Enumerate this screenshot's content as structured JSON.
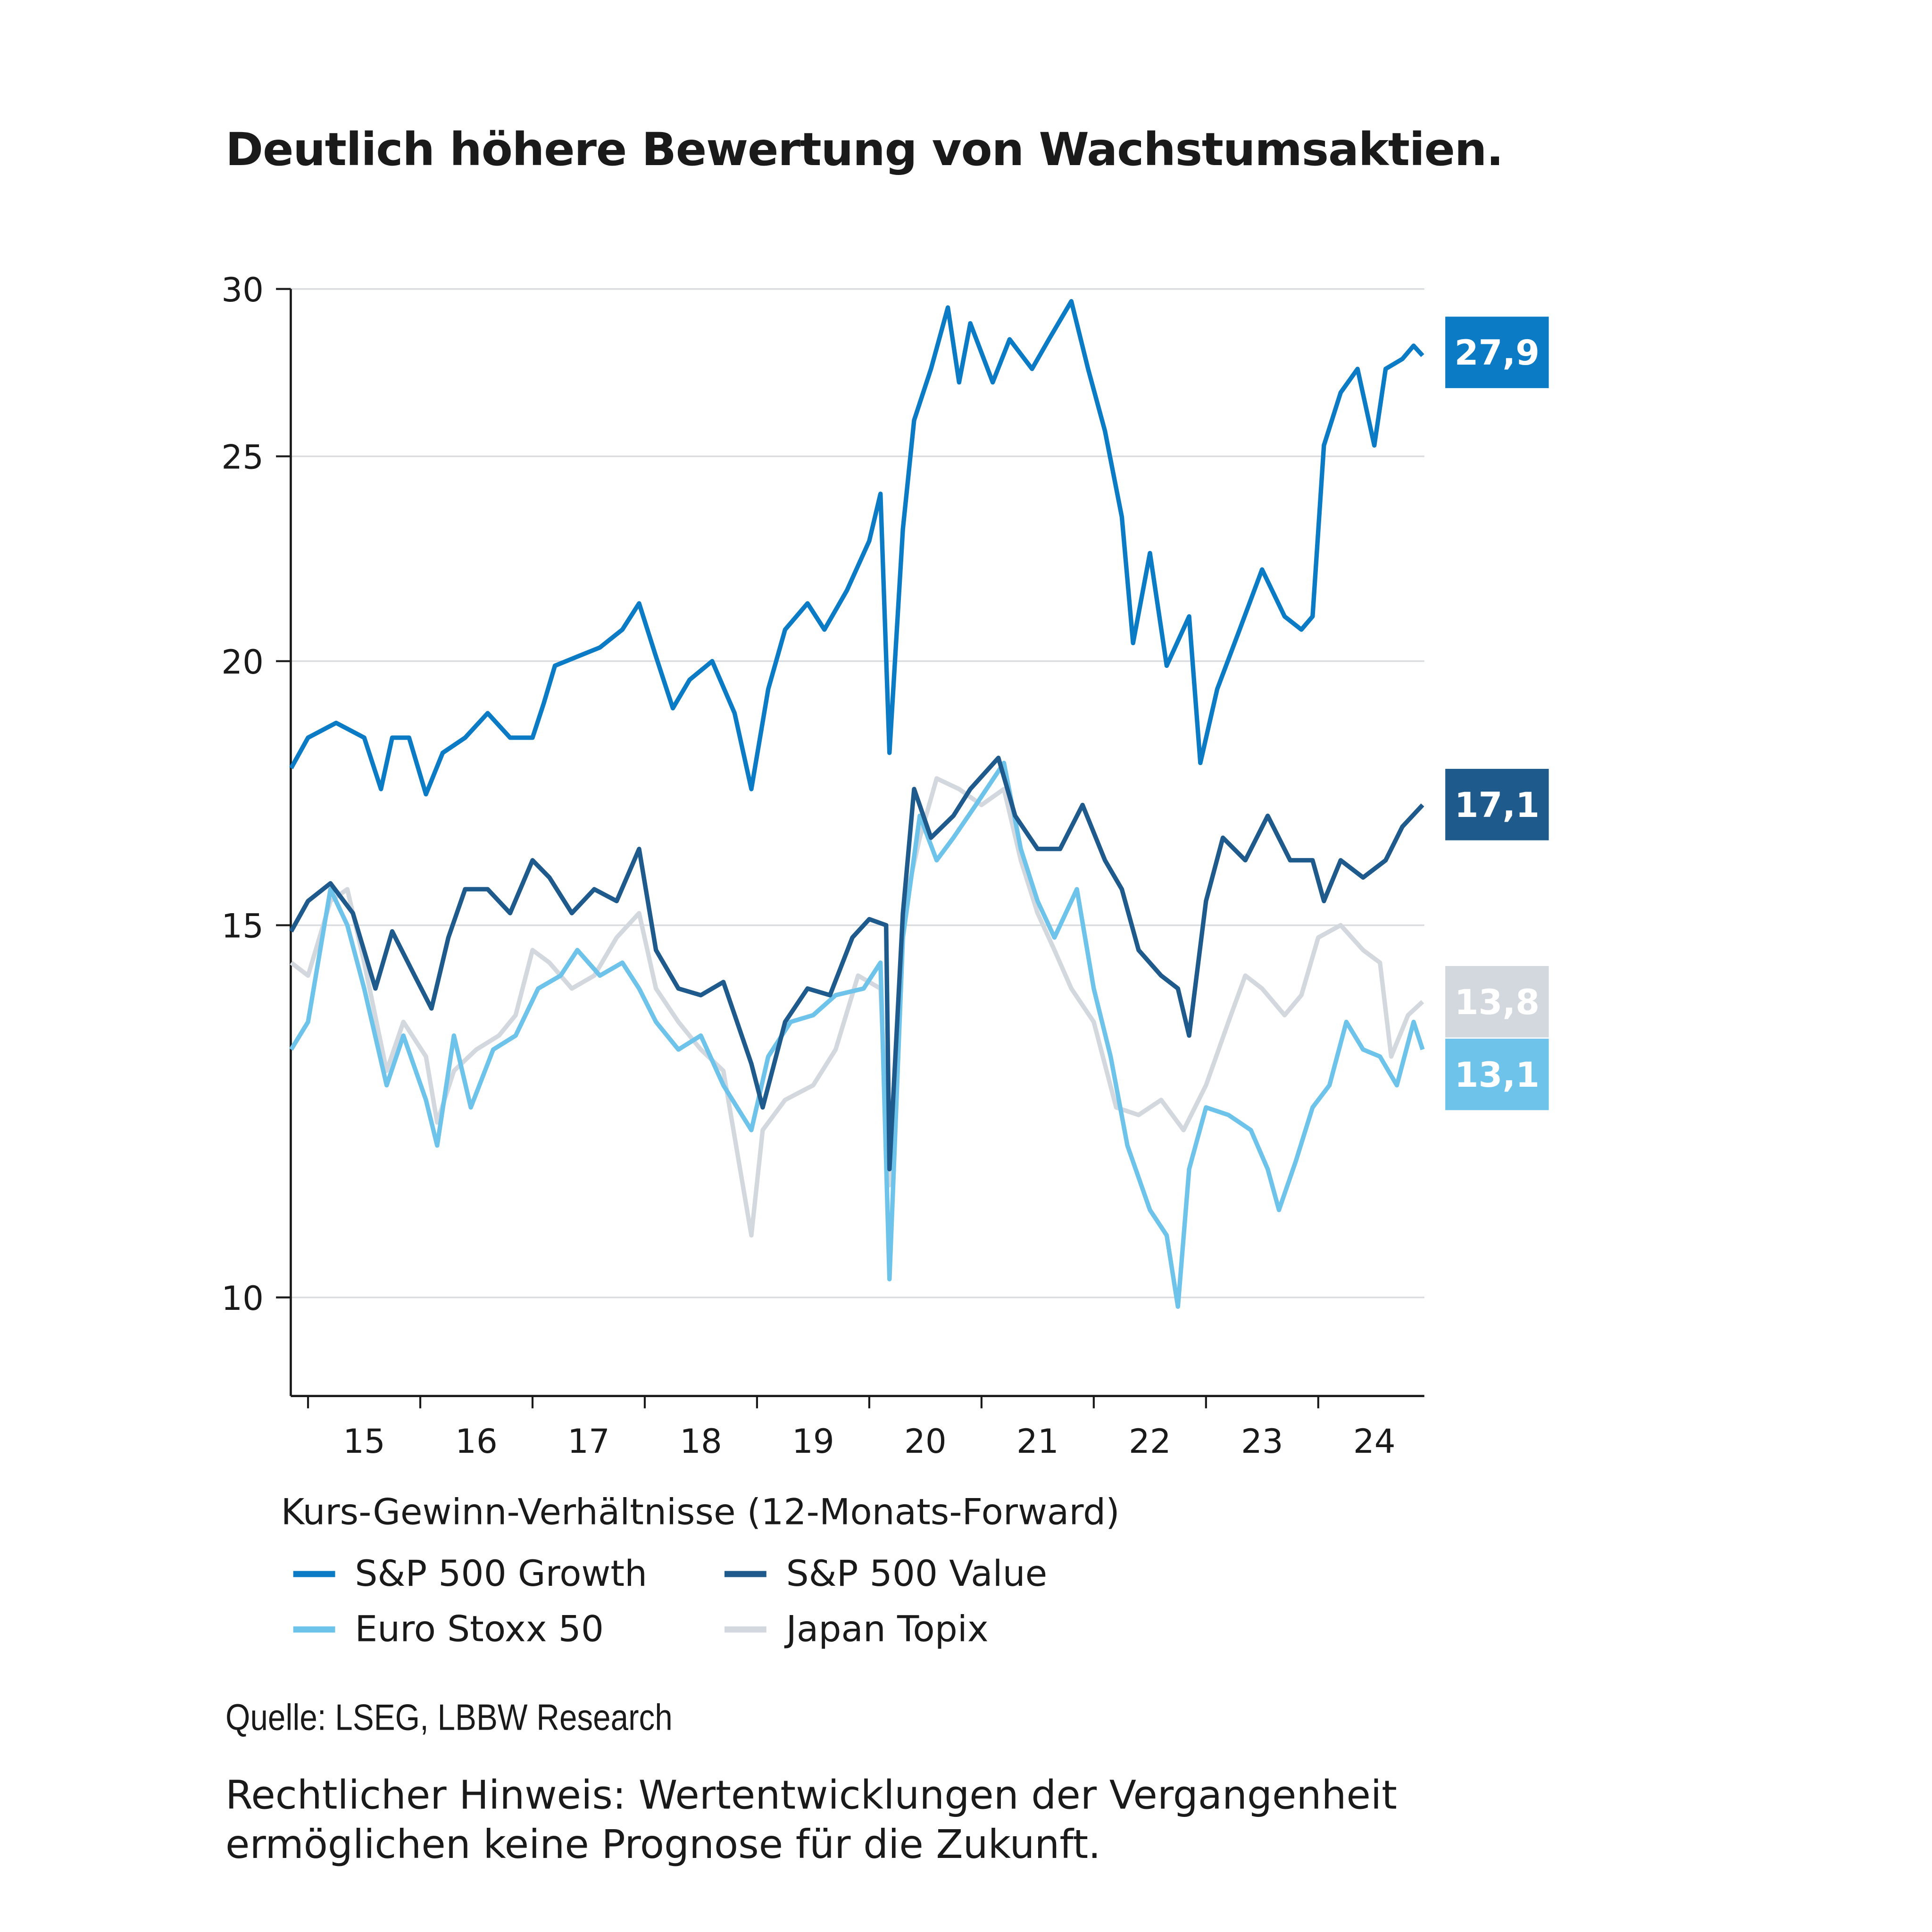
{
  "title": "Deutlich höhere Bewertung von Wachstumsaktien.",
  "chart_data": {
    "type": "line",
    "title": "Deutlich höhere Bewertung von Wachstumsaktien.",
    "ylabel": "Kurs-Gewinn-Verhältnisse (12-Monats-Forward)",
    "xlabel": "",
    "y_scale": "log",
    "ylim": [
      9,
      30
    ],
    "yticks": [
      10,
      15,
      20,
      25,
      30
    ],
    "ytick_labels": [
      "10",
      "15",
      "20",
      "25",
      "30"
    ],
    "xlim": [
      2014.85,
      2024.93
    ],
    "xtick_labels": [
      "15",
      "16",
      "17",
      "18",
      "19",
      "20",
      "21",
      "22",
      "23",
      "24"
    ],
    "grid": true,
    "legend_placement": "bottom",
    "series": [
      {
        "name": "S&P 500 Growth",
        "color": "#0a7bc4",
        "end_label": "27,9",
        "end_label_text_color": "#ffffff",
        "x": [
          2014.85,
          2015.0,
          2015.25,
          2015.5,
          2015.65,
          2015.75,
          2015.9,
          2016.05,
          2016.2,
          2016.4,
          2016.6,
          2016.8,
          2017.0,
          2017.1,
          2017.2,
          2017.4,
          2017.6,
          2017.8,
          2017.95,
          2018.1,
          2018.25,
          2018.4,
          2018.6,
          2018.8,
          2018.95,
          2019.1,
          2019.25,
          2019.45,
          2019.6,
          2019.8,
          2020.0,
          2020.1,
          2020.18,
          2020.3,
          2020.4,
          2020.55,
          2020.7,
          2020.8,
          2020.9,
          2021.1,
          2021.25,
          2021.45,
          2021.6,
          2021.8,
          2021.95,
          2022.1,
          2022.25,
          2022.35,
          2022.5,
          2022.65,
          2022.85,
          2022.95,
          2023.1,
          2023.3,
          2023.5,
          2023.7,
          2023.85,
          2023.95,
          2024.05,
          2024.2,
          2024.35,
          2024.5,
          2024.6,
          2024.75,
          2024.85,
          2024.93
        ],
        "y": [
          17.8,
          18.4,
          18.7,
          18.4,
          17.4,
          18.4,
          18.4,
          17.3,
          18.1,
          18.4,
          18.9,
          18.4,
          18.4,
          19.1,
          19.9,
          20.1,
          20.3,
          20.7,
          21.3,
          20.1,
          19.0,
          19.6,
          20.0,
          18.9,
          17.4,
          19.4,
          20.7,
          21.3,
          20.7,
          21.6,
          22.8,
          24.0,
          18.1,
          23.1,
          26.0,
          27.5,
          29.4,
          27.1,
          28.9,
          27.1,
          28.4,
          27.5,
          28.4,
          29.6,
          27.5,
          25.7,
          23.4,
          20.4,
          22.5,
          19.9,
          21.0,
          17.9,
          19.4,
          20.7,
          22.1,
          21.0,
          20.7,
          21.0,
          25.3,
          26.8,
          27.5,
          25.3,
          27.5,
          27.8,
          28.2,
          27.9
        ]
      },
      {
        "name": "S&P 500 Value",
        "color": "#1f5a8c",
        "end_label": "17,1",
        "end_label_text_color": "#ffffff",
        "x": [
          2014.85,
          2015.0,
          2015.2,
          2015.4,
          2015.6,
          2015.75,
          2015.95,
          2016.1,
          2016.25,
          2016.4,
          2016.6,
          2016.8,
          2017.0,
          2017.15,
          2017.35,
          2017.55,
          2017.75,
          2017.95,
          2018.1,
          2018.3,
          2018.5,
          2018.7,
          2018.95,
          2019.05,
          2019.25,
          2019.45,
          2019.65,
          2019.85,
          2020.0,
          2020.15,
          2020.18,
          2020.3,
          2020.4,
          2020.55,
          2020.75,
          2020.9,
          2021.15,
          2021.3,
          2021.5,
          2021.7,
          2021.9,
          2022.1,
          2022.25,
          2022.4,
          2022.6,
          2022.75,
          2022.85,
          2023.0,
          2023.15,
          2023.35,
          2023.55,
          2023.75,
          2023.95,
          2024.05,
          2024.2,
          2024.4,
          2024.6,
          2024.75,
          2024.93
        ],
        "y": [
          14.9,
          15.4,
          15.7,
          15.2,
          14.0,
          14.9,
          14.2,
          13.7,
          14.8,
          15.6,
          15.6,
          15.2,
          16.1,
          15.8,
          15.2,
          15.6,
          15.4,
          16.3,
          14.6,
          14.0,
          13.9,
          14.1,
          12.9,
          12.3,
          13.5,
          14.0,
          13.9,
          14.8,
          15.1,
          15.0,
          11.5,
          15.2,
          17.4,
          16.5,
          16.9,
          17.4,
          18.0,
          16.9,
          16.3,
          16.3,
          17.1,
          16.1,
          15.6,
          14.6,
          14.2,
          14.0,
          13.3,
          15.4,
          16.5,
          16.1,
          16.9,
          16.1,
          16.1,
          15.4,
          16.1,
          15.8,
          16.1,
          16.7,
          17.1
        ]
      },
      {
        "name": "Euro Stoxx 50",
        "color": "#6ec3ea",
        "end_label": "13,1",
        "end_label_text_color": "#ffffff",
        "x": [
          2014.85,
          2015.0,
          2015.2,
          2015.35,
          2015.5,
          2015.7,
          2015.85,
          2016.05,
          2016.15,
          2016.3,
          2016.45,
          2016.65,
          2016.85,
          2017.05,
          2017.25,
          2017.4,
          2017.6,
          2017.8,
          2017.95,
          2018.1,
          2018.3,
          2018.5,
          2018.7,
          2018.95,
          2019.1,
          2019.3,
          2019.5,
          2019.7,
          2019.95,
          2020.1,
          2020.18,
          2020.3,
          2020.45,
          2020.6,
          2020.75,
          2020.95,
          2021.2,
          2021.35,
          2021.5,
          2021.65,
          2021.85,
          2022.0,
          2022.15,
          2022.3,
          2022.5,
          2022.65,
          2022.75,
          2022.85,
          2023.0,
          2023.2,
          2023.4,
          2023.55,
          2023.65,
          2023.8,
          2023.95,
          2024.1,
          2024.25,
          2024.4,
          2024.55,
          2024.7,
          2024.85,
          2024.93
        ],
        "y": [
          13.1,
          13.5,
          15.6,
          15.0,
          14.0,
          12.6,
          13.3,
          12.4,
          11.8,
          13.3,
          12.3,
          13.1,
          13.3,
          14.0,
          14.2,
          14.6,
          14.2,
          14.4,
          14.0,
          13.5,
          13.1,
          13.3,
          12.6,
          12.0,
          13.0,
          13.5,
          13.6,
          13.9,
          14.0,
          14.4,
          10.2,
          14.8,
          16.9,
          16.1,
          16.5,
          17.1,
          17.9,
          16.3,
          15.4,
          14.8,
          15.6,
          14.0,
          13.0,
          11.8,
          11.0,
          10.7,
          9.9,
          11.5,
          12.3,
          12.2,
          12.0,
          11.5,
          11.0,
          11.6,
          12.3,
          12.6,
          13.5,
          13.1,
          13.0,
          12.6,
          13.5,
          13.1
        ]
      },
      {
        "name": "Japan Topix",
        "color": "#d3d7de",
        "end_label": "13,8",
        "end_label_text_color": "#ffffff",
        "x": [
          2014.85,
          2015.0,
          2015.2,
          2015.35,
          2015.5,
          2015.7,
          2015.85,
          2016.05,
          2016.15,
          2016.3,
          2016.5,
          2016.7,
          2016.85,
          2017.0,
          2017.15,
          2017.35,
          2017.55,
          2017.75,
          2017.95,
          2018.1,
          2018.3,
          2018.5,
          2018.7,
          2018.95,
          2019.05,
          2019.25,
          2019.5,
          2019.7,
          2019.9,
          2020.1,
          2020.18,
          2020.3,
          2020.45,
          2020.6,
          2020.8,
          2021.0,
          2021.2,
          2021.35,
          2021.5,
          2021.65,
          2021.8,
          2022.0,
          2022.2,
          2022.4,
          2022.6,
          2022.8,
          2023.0,
          2023.2,
          2023.35,
          2023.5,
          2023.7,
          2023.85,
          2024.0,
          2024.2,
          2024.4,
          2024.55,
          2024.65,
          2024.8,
          2024.93
        ],
        "y": [
          14.4,
          14.2,
          15.4,
          15.6,
          14.4,
          12.8,
          13.5,
          13.0,
          12.1,
          12.8,
          13.1,
          13.3,
          13.6,
          14.6,
          14.4,
          14.0,
          14.2,
          14.8,
          15.2,
          14.0,
          13.5,
          13.1,
          12.8,
          10.7,
          12.0,
          12.4,
          12.6,
          13.1,
          14.2,
          14.0,
          11.3,
          15.2,
          16.5,
          17.6,
          17.4,
          17.1,
          17.4,
          16.1,
          15.2,
          14.6,
          14.0,
          13.5,
          12.3,
          12.2,
          12.4,
          12.0,
          12.6,
          13.5,
          14.2,
          14.0,
          13.6,
          13.9,
          14.8,
          15.0,
          14.6,
          14.4,
          13.0,
          13.6,
          13.8
        ]
      }
    ]
  },
  "legend": {
    "title": "Kurs-Gewinn-Verhältnisse (12-Monats-Forward)",
    "items": [
      "S&P 500 Growth",
      "S&P 500 Value",
      "Euro Stoxx 50",
      "Japan Topix"
    ]
  },
  "source": "Quelle: LSEG, LBBW Research",
  "note": "Rechtlicher Hinweis: Wertentwicklungen der Vergangenheit ermöglichen keine Prognose für die Zukunft."
}
